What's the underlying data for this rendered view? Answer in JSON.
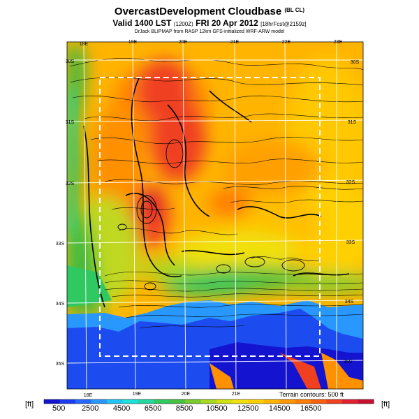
{
  "title": {
    "main": "OvercastDevelopment Cloudbase",
    "main_suffix": "(BL CL)",
    "valid_a": "Valid 1400 LST",
    "valid_b": "(1200Z)",
    "valid_c": "FRI 20 Apr 2012",
    "valid_d": "[18hrFcst@2159z]",
    "credit": "DrJack BLIPMAP from RASP 12km GFS-initialized WRF-ARW model"
  },
  "lon_labels_top": [
    "18E",
    "19E",
    "20E",
    "21E",
    "22E",
    "23E"
  ],
  "lon_labels_bottom": [
    "18E",
    "19E",
    "20E",
    "21E"
  ],
  "lat_labels_left": [
    "30S",
    "31S",
    "32S",
    "33S",
    "34S",
    "35S"
  ],
  "lat_labels_right": [
    "30S",
    "31S",
    "32S",
    "33S",
    "34S",
    "35S"
  ],
  "terrain_note": "Terrain contours: 500 ft",
  "colorbar": {
    "unit": "[ft]",
    "ticks": [
      "500",
      "2500",
      "4500",
      "6500",
      "8500",
      "10500",
      "12500",
      "14500",
      "16500"
    ],
    "colors": [
      "#1414d0",
      "#1c3cf0",
      "#2468ff",
      "#2898ff",
      "#22c4f4",
      "#1ee0d8",
      "#24d8a0",
      "#30c860",
      "#48c040",
      "#78cc30",
      "#a8d820",
      "#d0e010",
      "#f0e010",
      "#ffd000",
      "#ffb400",
      "#ff9800",
      "#ff7c00",
      "#f86010",
      "#f04020",
      "#e02030",
      "#c81030"
    ]
  },
  "field": {
    "coast_color": "#1c4cf0",
    "west_color": "#40b840"
  }
}
